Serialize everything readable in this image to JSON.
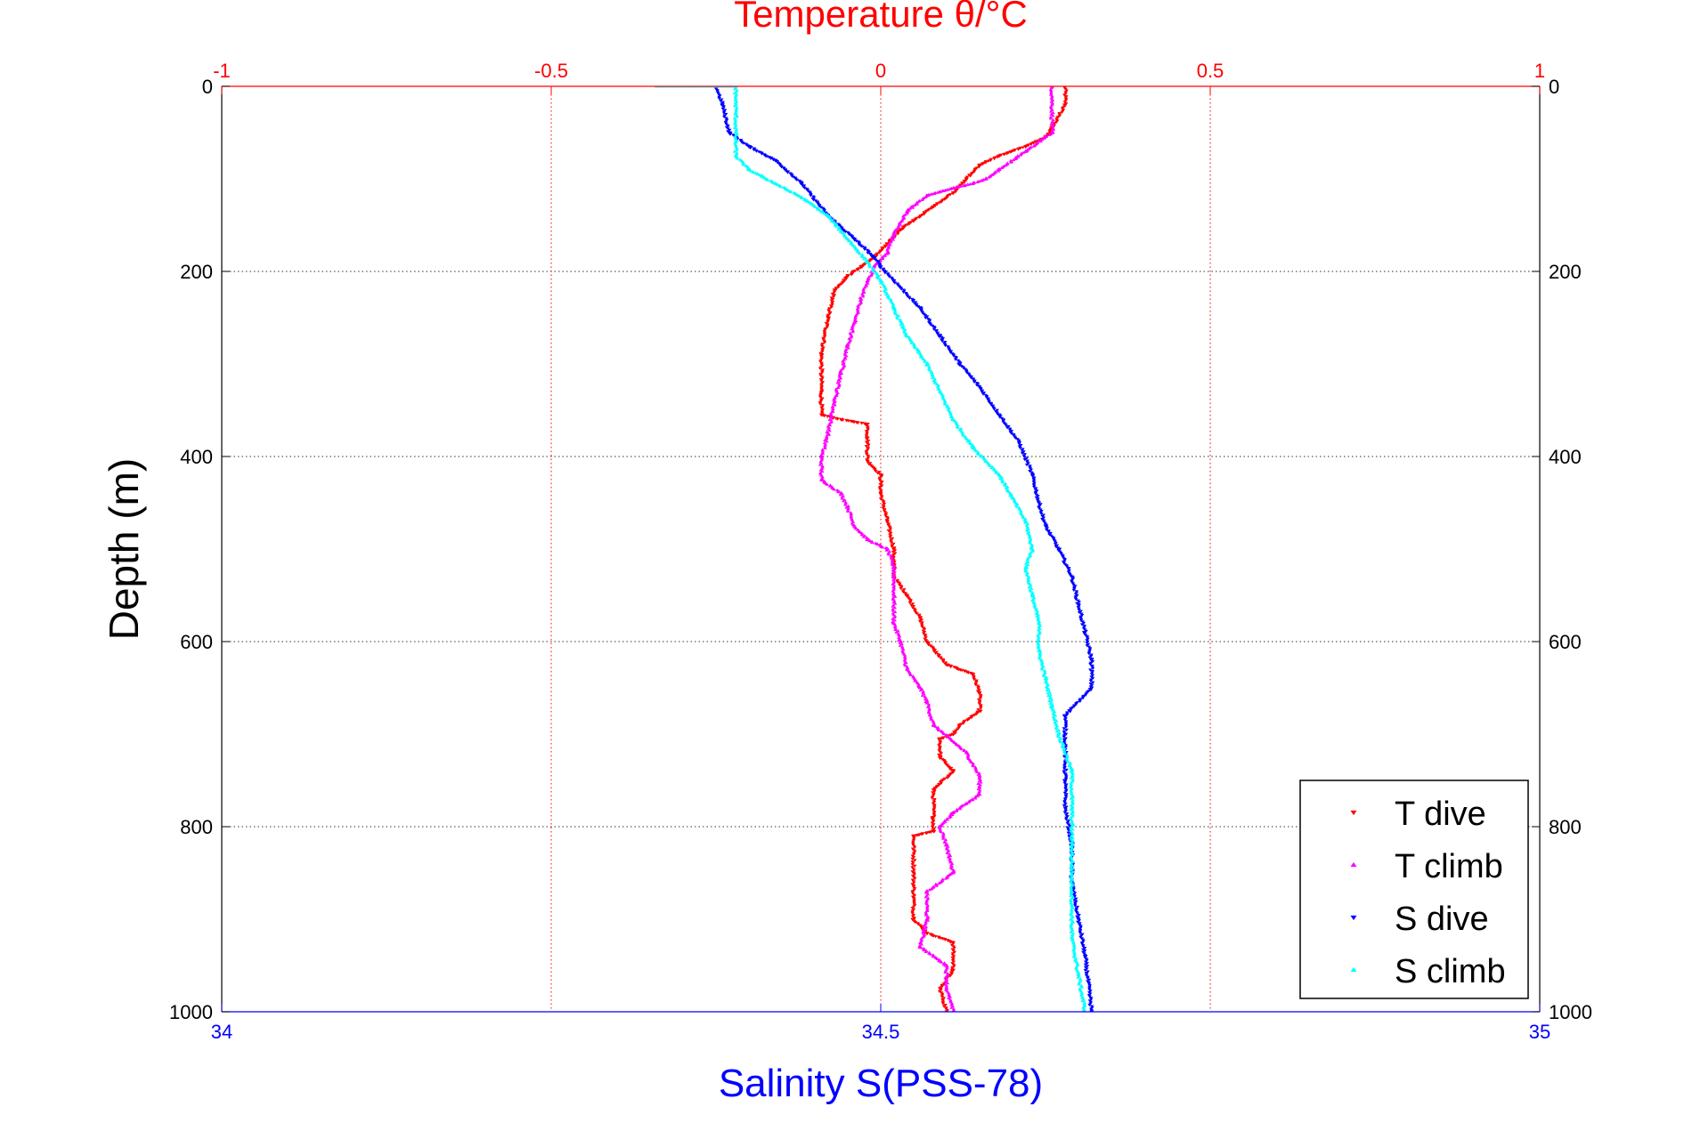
{
  "chart_data": {
    "type": "scatter",
    "title": "Temperature θ/°C",
    "xlabel_bottom": "Salinity S(PSS-78)",
    "ylabel": "Depth (m)",
    "x_top": {
      "label": "Temperature θ/°C",
      "lim": [
        -1,
        1
      ],
      "ticks": [
        "-1",
        "-0.5",
        "0",
        "0.5",
        "1"
      ],
      "color": "#ff0000"
    },
    "x_bottom": {
      "label": "Salinity S(PSS-78)",
      "lim": [
        34,
        35
      ],
      "ticks": [
        "34",
        "34.5",
        "35"
      ],
      "color": "#0000ff"
    },
    "y": {
      "lim": [
        0,
        1000
      ],
      "reversed": true,
      "ticks": [
        "0",
        "200",
        "400",
        "600",
        "800",
        "1000"
      ]
    },
    "grid": true,
    "legend": {
      "placement": "bottom-right",
      "entries": [
        "T dive",
        "T climb",
        "S dive",
        "S climb"
      ]
    },
    "series": [
      {
        "name": "T dive",
        "axis": "temperature",
        "color": "#ff0000",
        "marker": "triangle-down",
        "points": [
          [
            0.28,
            0
          ],
          [
            0.28,
            20
          ],
          [
            0.26,
            45
          ],
          [
            0.25,
            55
          ],
          [
            0.22,
            65
          ],
          [
            0.18,
            75
          ],
          [
            0.15,
            85
          ],
          [
            0.13,
            100
          ],
          [
            0.11,
            115
          ],
          [
            0.08,
            130
          ],
          [
            0.05,
            145
          ],
          [
            0.03,
            155
          ],
          [
            0.01,
            170
          ],
          [
            -0.01,
            185
          ],
          [
            -0.03,
            195
          ],
          [
            -0.05,
            205
          ],
          [
            -0.07,
            220
          ],
          [
            -0.08,
            250
          ],
          [
            -0.09,
            290
          ],
          [
            -0.09,
            330
          ],
          [
            -0.09,
            355
          ],
          [
            -0.06,
            360
          ],
          [
            -0.02,
            365
          ],
          [
            -0.02,
            380
          ],
          [
            -0.02,
            405
          ],
          [
            0,
            420
          ],
          [
            0,
            440
          ],
          [
            0.01,
            470
          ],
          [
            0.02,
            500
          ],
          [
            0.02,
            530
          ],
          [
            0.04,
            550
          ],
          [
            0.06,
            575
          ],
          [
            0.07,
            600
          ],
          [
            0.1,
            625
          ],
          [
            0.14,
            635
          ],
          [
            0.15,
            655
          ],
          [
            0.15,
            675
          ],
          [
            0.12,
            690
          ],
          [
            0.11,
            700
          ],
          [
            0.09,
            705
          ],
          [
            0.09,
            725
          ],
          [
            0.11,
            740
          ],
          [
            0.08,
            760
          ],
          [
            0.08,
            790
          ],
          [
            0.08,
            805
          ],
          [
            0.05,
            810
          ],
          [
            0.05,
            850
          ],
          [
            0.05,
            900
          ],
          [
            0.07,
            915
          ],
          [
            0.11,
            925
          ],
          [
            0.11,
            955
          ],
          [
            0.09,
            975
          ],
          [
            0.1,
            1000
          ]
        ]
      },
      {
        "name": "T climb",
        "axis": "temperature",
        "color": "#ff00ff",
        "marker": "triangle-up",
        "points": [
          [
            0.26,
            0
          ],
          [
            0.26,
            50
          ],
          [
            0.22,
            70
          ],
          [
            0.18,
            90
          ],
          [
            0.16,
            100
          ],
          [
            0.14,
            105
          ],
          [
            0.11,
            110
          ],
          [
            0.07,
            118
          ],
          [
            0.04,
            135
          ],
          [
            0.02,
            160
          ],
          [
            0.01,
            180
          ],
          [
            -0.01,
            195
          ],
          [
            -0.02,
            210
          ],
          [
            -0.03,
            230
          ],
          [
            -0.04,
            255
          ],
          [
            -0.05,
            280
          ],
          [
            -0.06,
            310
          ],
          [
            -0.07,
            340
          ],
          [
            -0.08,
            375
          ],
          [
            -0.09,
            400
          ],
          [
            -0.09,
            425
          ],
          [
            -0.06,
            440
          ],
          [
            -0.05,
            455
          ],
          [
            -0.04,
            475
          ],
          [
            -0.02,
            490
          ],
          [
            0.01,
            500
          ],
          [
            0.02,
            520
          ],
          [
            0.02,
            550
          ],
          [
            0.02,
            580
          ],
          [
            0.03,
            600
          ],
          [
            0.04,
            630
          ],
          [
            0.06,
            650
          ],
          [
            0.07,
            665
          ],
          [
            0.08,
            690
          ],
          [
            0.13,
            720
          ],
          [
            0.15,
            745
          ],
          [
            0.15,
            765
          ],
          [
            0.11,
            785
          ],
          [
            0.09,
            800
          ],
          [
            0.1,
            820
          ],
          [
            0.11,
            850
          ],
          [
            0.07,
            870
          ],
          [
            0.07,
            900
          ],
          [
            0.06,
            930
          ],
          [
            0.1,
            950
          ],
          [
            0.1,
            975
          ],
          [
            0.11,
            1000
          ]
        ]
      },
      {
        "name": "S dive",
        "axis": "salinity",
        "color": "#0000ff",
        "marker": "triangle-down",
        "points": [
          [
            34.375,
            0
          ],
          [
            34.38,
            20
          ],
          [
            34.385,
            50
          ],
          [
            34.4,
            65
          ],
          [
            34.42,
            80
          ],
          [
            34.44,
            105
          ],
          [
            34.46,
            140
          ],
          [
            34.48,
            165
          ],
          [
            34.495,
            185
          ],
          [
            34.5,
            195
          ],
          [
            34.51,
            210
          ],
          [
            34.53,
            240
          ],
          [
            34.545,
            270
          ],
          [
            34.56,
            300
          ],
          [
            34.575,
            325
          ],
          [
            34.59,
            355
          ],
          [
            34.605,
            385
          ],
          [
            34.615,
            420
          ],
          [
            34.62,
            450
          ],
          [
            34.625,
            475
          ],
          [
            34.635,
            500
          ],
          [
            34.645,
            530
          ],
          [
            34.65,
            560
          ],
          [
            34.655,
            590
          ],
          [
            34.66,
            620
          ],
          [
            34.66,
            650
          ],
          [
            34.64,
            680
          ],
          [
            34.64,
            700
          ],
          [
            34.64,
            730
          ],
          [
            34.64,
            750
          ],
          [
            34.64,
            780
          ],
          [
            34.645,
            820
          ],
          [
            34.645,
            860
          ],
          [
            34.65,
            900
          ],
          [
            34.655,
            940
          ],
          [
            34.66,
            1000
          ]
        ]
      },
      {
        "name": "S climb",
        "axis": "salinity",
        "color": "#00ffff",
        "marker": "triangle-up",
        "points": [
          [
            34.33,
            0
          ],
          [
            34.39,
            0
          ],
          [
            34.39,
            30
          ],
          [
            34.39,
            60
          ],
          [
            34.39,
            75
          ],
          [
            34.4,
            90
          ],
          [
            34.42,
            105
          ],
          [
            34.44,
            120
          ],
          [
            34.46,
            140
          ],
          [
            34.475,
            165
          ],
          [
            34.49,
            190
          ],
          [
            34.5,
            210
          ],
          [
            34.51,
            240
          ],
          [
            34.52,
            270
          ],
          [
            34.535,
            300
          ],
          [
            34.545,
            330
          ],
          [
            34.555,
            360
          ],
          [
            34.57,
            390
          ],
          [
            34.59,
            420
          ],
          [
            34.6,
            445
          ],
          [
            34.61,
            470
          ],
          [
            34.615,
            500
          ],
          [
            34.61,
            520
          ],
          [
            34.615,
            550
          ],
          [
            34.62,
            580
          ],
          [
            34.62,
            610
          ],
          [
            34.625,
            640
          ],
          [
            34.63,
            670
          ],
          [
            34.635,
            700
          ],
          [
            34.645,
            740
          ],
          [
            34.645,
            780
          ],
          [
            34.645,
            820
          ],
          [
            34.645,
            870
          ],
          [
            34.645,
            920
          ],
          [
            34.65,
            960
          ],
          [
            34.655,
            1000
          ]
        ]
      }
    ]
  }
}
